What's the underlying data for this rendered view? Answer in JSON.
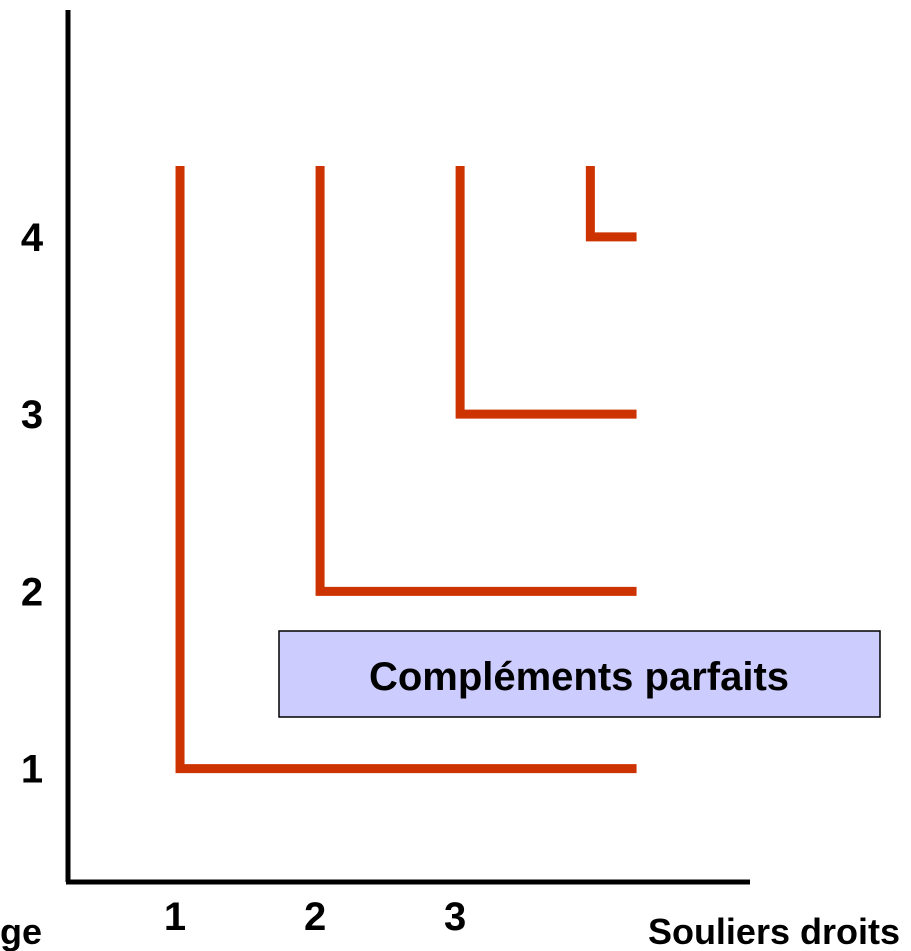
{
  "chart_data": {
    "type": "line",
    "x_label": "Souliers droits",
    "y_label": "ge",
    "annotation": "Compléments parfaits",
    "xlim": [
      0.2,
      5.07
    ],
    "ylim": [
      0.36,
      5.28
    ],
    "xticks": [
      1,
      2,
      3
    ],
    "yticks": [
      1,
      2,
      3,
      4
    ],
    "grid": false,
    "series": [
      {
        "color": "#cc3300",
        "x": [
          1,
          1,
          4.26
        ],
        "values": [
          4.4,
          1,
          1
        ]
      },
      {
        "color": "#cc3300",
        "x": [
          2,
          2,
          4.26
        ],
        "values": [
          4.4,
          2,
          2
        ]
      },
      {
        "color": "#cc3300",
        "x": [
          3,
          3,
          4.26
        ],
        "values": [
          4.4,
          3,
          3
        ]
      },
      {
        "color": "#cc3300",
        "x": [
          3.93,
          3.93,
          4.26
        ],
        "values": [
          4.4,
          4,
          4
        ]
      }
    ]
  }
}
